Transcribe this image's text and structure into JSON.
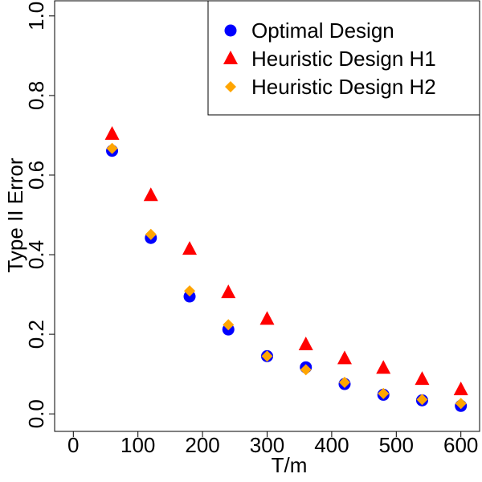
{
  "chart_data": {
    "type": "scatter",
    "xlabel": "T/m",
    "ylabel": "Type II Error",
    "xlim": [
      -24,
      624
    ],
    "xticks": [
      0,
      100,
      200,
      300,
      400,
      500,
      600
    ],
    "ylim": [
      -0.04,
      1.04
    ],
    "yticks": [
      0.0,
      0.2,
      0.4,
      0.6,
      0.8,
      1.0
    ],
    "legend": "top-right",
    "x": [
      60,
      120,
      180,
      240,
      300,
      360,
      420,
      480,
      540,
      600
    ],
    "series": [
      {
        "name": "Optimal Design",
        "color": "#0000ff",
        "marker": "circle",
        "values": [
          0.661,
          0.442,
          0.295,
          0.212,
          0.145,
          0.117,
          0.075,
          0.048,
          0.034,
          0.02
        ]
      },
      {
        "name": "Heuristic Design H1",
        "color": "#ff0000",
        "marker": "triangle",
        "values": [
          0.703,
          0.549,
          0.414,
          0.305,
          0.238,
          0.174,
          0.139,
          0.115,
          0.087,
          0.061
        ]
      },
      {
        "name": "Heuristic Design H2",
        "color": "#ffa500",
        "marker": "diamond",
        "values": [
          0.667,
          0.451,
          0.309,
          0.224,
          0.145,
          0.111,
          0.079,
          0.051,
          0.036,
          0.026
        ]
      }
    ]
  }
}
